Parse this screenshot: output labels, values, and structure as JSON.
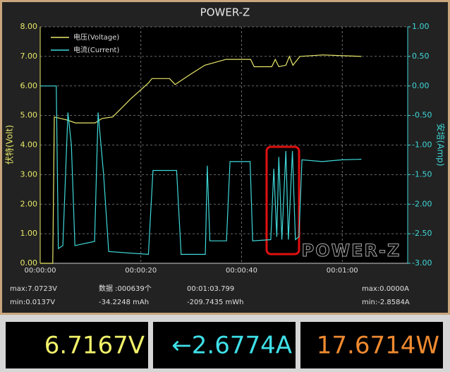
{
  "chart_data": {
    "type": "line",
    "title": "POWER-Z",
    "ylabel": "伏特(Volt)",
    "y2label": "安培(Amp)",
    "watermark": "POWER-Z",
    "xlim": [
      0,
      73
    ],
    "ylim": [
      0,
      8
    ],
    "y2lim": [
      -3,
      1
    ],
    "grid": true,
    "legend": "upper left",
    "xticks": [
      {
        "value": 0,
        "label": "00:00:00"
      },
      {
        "value": 20,
        "label": "00:00:20"
      },
      {
        "value": 40,
        "label": "00:00:40"
      },
      {
        "value": 60,
        "label": "00:01:00"
      }
    ],
    "yticks": [
      {
        "value": 0,
        "label": "0.00"
      },
      {
        "value": 1,
        "label": "1.00"
      },
      {
        "value": 2,
        "label": "2.00"
      },
      {
        "value": 3,
        "label": "3.00"
      },
      {
        "value": 4,
        "label": "4.00"
      },
      {
        "value": 5,
        "label": "5.00"
      },
      {
        "value": 6,
        "label": "6.00"
      },
      {
        "value": 7,
        "label": "7.00"
      },
      {
        "value": 8,
        "label": "8.00"
      }
    ],
    "y2ticks": [
      {
        "value": -3,
        "label": "-3.00"
      },
      {
        "value": -2.5,
        "label": "-2.50"
      },
      {
        "value": -2,
        "label": "-2.00"
      },
      {
        "value": -1.5,
        "label": "-1.50"
      },
      {
        "value": -1,
        "label": "-1.00"
      },
      {
        "value": -0.5,
        "label": "-0.50"
      },
      {
        "value": 0,
        "label": "0.00"
      },
      {
        "value": 0.5,
        "label": "0.50"
      },
      {
        "value": 1,
        "label": "1.00"
      }
    ],
    "series": [
      {
        "name": "电压(Voltage)",
        "color": "#e8e86a",
        "x": [
          0,
          2.5,
          2.8,
          5.3,
          7.0,
          10.9,
          12.3,
          14.4,
          17.9,
          21.5,
          22.2,
          25.7,
          26.8,
          29.9,
          32.7,
          36.9,
          41.8,
          42.5,
          46.0,
          46.7,
          47.4,
          48.8,
          49.5,
          50.2,
          51.6,
          56.1,
          63.8
        ],
        "values": [
          0,
          0,
          4.95,
          4.85,
          4.75,
          4.75,
          4.9,
          4.95,
          5.55,
          6.1,
          6.25,
          6.25,
          6.05,
          6.4,
          6.7,
          6.9,
          6.9,
          6.65,
          6.65,
          6.9,
          6.65,
          6.7,
          7.0,
          6.7,
          7.0,
          7.05,
          7.0
        ]
      },
      {
        "name": "电流(Current)",
        "color": "#3fd8d8",
        "axis": "y2",
        "x": [
          0,
          3.2,
          3.6,
          4.5,
          5.5,
          6.2,
          6.9,
          10.8,
          11.5,
          12.6,
          13.6,
          21.5,
          22.4,
          27.1,
          28.0,
          32.8,
          33.2,
          33.7,
          37.0,
          37.7,
          41.7,
          42.2,
          45.8,
          46.4,
          47.0,
          47.4,
          48.0,
          48.8,
          49.3,
          50.1,
          50.7,
          51.4,
          52.0,
          56.0,
          60.0,
          63.8
        ],
        "values": [
          0,
          0,
          -2.75,
          -2.7,
          -0.45,
          -1.0,
          -2.7,
          -2.63,
          -0.45,
          -1.5,
          -2.8,
          -2.85,
          -1.43,
          -1.43,
          -2.85,
          -2.85,
          -1.35,
          -2.62,
          -2.62,
          -1.28,
          -1.28,
          -2.62,
          -2.6,
          -1.4,
          -2.55,
          -1.2,
          -2.6,
          -1.1,
          -2.6,
          -1.1,
          -2.6,
          -2.55,
          -1.25,
          -1.28,
          -1.25,
          -1.24
        ]
      }
    ]
  },
  "stats": {
    "row1": [
      "max:7.0723V",
      "数据 :000639个",
      "00:01:03.799",
      "max:0.0000A"
    ],
    "row2": [
      "min:0.0137V",
      "-34.2248 mAh",
      "-209.7435 mWh",
      "min:-2.8584A"
    ]
  },
  "readouts": [
    {
      "text": "6.7167V",
      "color": "#f2f26a"
    },
    {
      "text": "←2.6774A",
      "color": "#3fe0e8"
    },
    {
      "text": "17.6714W",
      "color": "#f08a30"
    }
  ]
}
